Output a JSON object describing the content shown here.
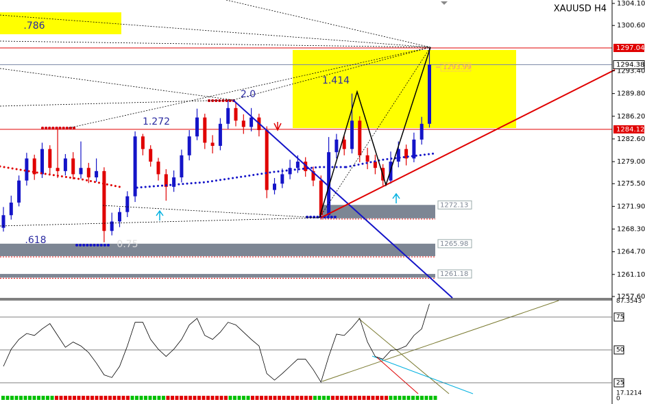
{
  "chart_data": [
    {
      "type": "candlestick",
      "title": "XAUUSD H4",
      "ohlc": [
        [
          1268.5,
          1271.8,
          1267.9,
          1270.5
        ],
        [
          1270.5,
          1273.6,
          1269.8,
          1272.5
        ],
        [
          1272.5,
          1276.8,
          1271.9,
          1276.0
        ],
        [
          1276.0,
          1280.4,
          1275.2,
          1279.5
        ],
        [
          1279.5,
          1280.1,
          1276.1,
          1277.0
        ],
        [
          1277.0,
          1282.0,
          1276.4,
          1281.0
        ],
        [
          1281.0,
          1281.6,
          1277.0,
          1278.0
        ],
        [
          1278.0,
          1284.5,
          1276.4,
          1277.5
        ],
        [
          1277.5,
          1280.2,
          1276.8,
          1279.5
        ],
        [
          1279.5,
          1280.5,
          1276.2,
          1277.0
        ],
        [
          1277.0,
          1282.2,
          1276.3,
          1278.0
        ],
        [
          1278.0,
          1278.8,
          1275.6,
          1276.5
        ],
        [
          1276.5,
          1279.5,
          1275.8,
          1277.5
        ],
        [
          1277.5,
          1278.1,
          1266.2,
          1268.0
        ],
        [
          1268.0,
          1270.9,
          1267.3,
          1269.5
        ],
        [
          1269.5,
          1271.7,
          1268.6,
          1271.0
        ],
        [
          1271.0,
          1274.3,
          1270.2,
          1273.5
        ],
        [
          1273.5,
          1283.8,
          1272.6,
          1283.0
        ],
        [
          1283.0,
          1283.4,
          1280.0,
          1281.0
        ],
        [
          1281.0,
          1281.6,
          1278.2,
          1279.0
        ],
        [
          1279.0,
          1279.6,
          1276.0,
          1277.0
        ],
        [
          1277.0,
          1277.8,
          1272.8,
          1275.0
        ],
        [
          1275.0,
          1277.6,
          1274.2,
          1276.5
        ],
        [
          1276.5,
          1280.9,
          1275.7,
          1280.0
        ],
        [
          1280.0,
          1284.0,
          1279.2,
          1283.0
        ],
        [
          1283.0,
          1287.4,
          1282.4,
          1286.0
        ],
        [
          1286.0,
          1286.6,
          1281.0,
          1282.0
        ],
        [
          1282.0,
          1283.2,
          1280.3,
          1281.5
        ],
        [
          1281.5,
          1285.9,
          1280.8,
          1285.0
        ],
        [
          1285.0,
          1288.7,
          1284.2,
          1287.5
        ],
        [
          1287.5,
          1288.4,
          1284.6,
          1285.5
        ],
        [
          1285.5,
          1286.5,
          1283.4,
          1284.5
        ],
        [
          1284.5,
          1287.5,
          1283.8,
          1286.0
        ],
        [
          1286.0,
          1286.6,
          1283.0,
          1284.0
        ],
        [
          1284.0,
          1284.6,
          1273.2,
          1274.5
        ],
        [
          1274.5,
          1276.4,
          1273.8,
          1275.5
        ],
        [
          1275.5,
          1277.9,
          1274.8,
          1277.0
        ],
        [
          1277.0,
          1279.3,
          1276.2,
          1278.0
        ],
        [
          1278.0,
          1280.0,
          1277.2,
          1279.0
        ],
        [
          1279.0,
          1279.7,
          1276.6,
          1277.5
        ],
        [
          1277.5,
          1278.2,
          1275.1,
          1276.0
        ],
        [
          1276.0,
          1276.8,
          1269.8,
          1270.5
        ],
        [
          1270.5,
          1282.9,
          1270.0,
          1280.5
        ],
        [
          1280.5,
          1283.4,
          1279.5,
          1282.5
        ],
        [
          1282.5,
          1283.1,
          1280.0,
          1281.0
        ],
        [
          1281.0,
          1289.8,
          1280.3,
          1285.5
        ],
        [
          1285.5,
          1286.2,
          1278.9,
          1280.0
        ],
        [
          1280.0,
          1281.2,
          1277.8,
          1279.0
        ],
        [
          1279.0,
          1280.1,
          1277.0,
          1278.0
        ],
        [
          1278.0,
          1278.6,
          1275.2,
          1276.0
        ],
        [
          1276.0,
          1280.6,
          1275.5,
          1279.0
        ],
        [
          1279.0,
          1282.2,
          1278.1,
          1281.0
        ],
        [
          1281.0,
          1281.7,
          1278.4,
          1279.5
        ],
        [
          1279.5,
          1283.6,
          1278.9,
          1282.5
        ],
        [
          1282.5,
          1286.1,
          1281.7,
          1285.0
        ],
        [
          1285.0,
          1297.0,
          1284.4,
          1294.4
        ]
      ],
      "up_color": "#1414c8",
      "down_color": "#e00000",
      "ylim": [
        1257.6,
        1304.1
      ],
      "yticks": [
        {
          "value": 1304.1,
          "label": "1304.10"
        },
        {
          "value": 1300.6,
          "label": "1300.60"
        },
        {
          "value": 1293.4,
          "label": "1293.40"
        },
        {
          "value": 1289.8,
          "label": "1289.80"
        },
        {
          "value": 1286.2,
          "label": "1286.20"
        },
        {
          "value": 1282.6,
          "label": "1282.60"
        },
        {
          "value": 1279.0,
          "label": "1279.00"
        },
        {
          "value": 1275.5,
          "label": "1275.50"
        },
        {
          "value": 1271.9,
          "label": "1271.90"
        },
        {
          "value": 1268.3,
          "label": "1268.30"
        },
        {
          "value": 1264.7,
          "label": "1264.70"
        },
        {
          "value": 1261.1,
          "label": "1261.10"
        },
        {
          "value": 1257.6,
          "label": "1257.60"
        }
      ],
      "levels": [
        {
          "value": 1297.04,
          "color": "#e00000"
        },
        {
          "value": 1294.38,
          "color": "#7c8aa8"
        },
        {
          "value": 1284.12,
          "color": "#e00000"
        }
      ],
      "alert": 1293.99,
      "zones": [
        {
          "top": 1272.13,
          "bottom": 1270.0
        },
        {
          "top": 1265.98,
          "bottom": 1264.0
        },
        {
          "top": 1261.18,
          "bottom": 1260.6
        }
      ],
      "zone_color": "#7d8694",
      "annotations": [
        ".786",
        ".618",
        "1.272",
        "2.0",
        "1.414",
        "0.75"
      ]
    },
    {
      "type": "line",
      "color": "#000000",
      "values": [
        37.5,
        50.5,
        58,
        62.5,
        61,
        66,
        70,
        61,
        52,
        56,
        53,
        48,
        40,
        31,
        29,
        37.5,
        53,
        71,
        71,
        58,
        50.5,
        45,
        50.5,
        58,
        69,
        74,
        61,
        58,
        63.5,
        71,
        69,
        63.5,
        58,
        53,
        32,
        27,
        32,
        37.5,
        43,
        43,
        35,
        25.5,
        45,
        62,
        61,
        67,
        74,
        56,
        45,
        43,
        49.5,
        50.5,
        53,
        61,
        66,
        85
      ],
      "ylim": [
        17.1214,
        87.3543
      ],
      "yticks": [
        87.3543,
        75,
        50,
        25,
        17.1214
      ],
      "footer_label": "0"
    }
  ]
}
